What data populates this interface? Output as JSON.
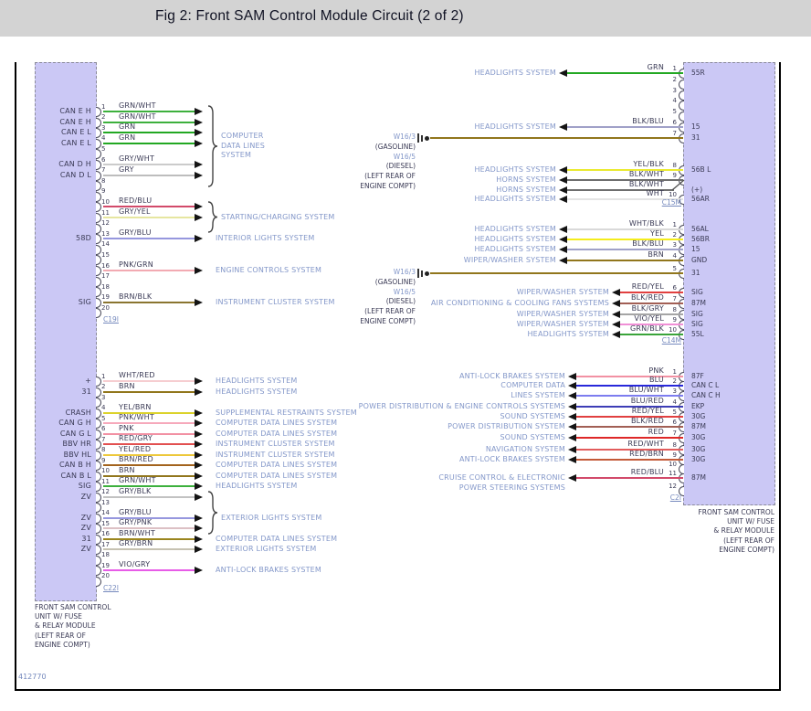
{
  "title": "Fig 2: Front SAM Control Module Circuit (2 of 2)",
  "figure_number": "412770",
  "module_caption_lines": [
    "FRONT SAM CONTROL",
    "UNIT W/ FUSE",
    "& RELAY MODULE",
    "(LEFT REAR OF",
    "ENGINE COMPT)"
  ],
  "ground_label_lines": [
    {
      "text": "W16/3",
      "accent": true
    },
    {
      "text": "(GASOLINE)",
      "accent": false
    },
    {
      "text": "W16/5",
      "accent": true
    },
    {
      "text": "(DIESEL)",
      "accent": false
    },
    {
      "text": "(LEFT REAR OF",
      "accent": false
    },
    {
      "text": "ENGINE COMPT)",
      "accent": false
    }
  ],
  "colors": {
    "module_fill": "#cbc8f5",
    "system_text": "#8397c9",
    "label_text": "#3a3a55",
    "connector_text": "#7589bd",
    "titlebar_bg": "#d3d3d3",
    "wire_colors": {
      "GRN/WHT": "#3db03d",
      "GRN": "#23a823",
      "GRY/WHT": "#cbcbcb",
      "GRY": "#bdbdbd",
      "RED/BLU": "#d24a6a",
      "GRY/YEL": "#e6e6a0",
      "GRY/BLU": "#9697de",
      "PNK/GRN": "#f2aab2",
      "BRN/BLK": "#8a7530",
      "WHT/RED": "#f6cdd0",
      "BRN": "#91761c",
      "YEL/BRN": "#dbd22b",
      "PNK/WHT": "#f6a9bb",
      "PNK": "#f291a3",
      "RED/GRY": "#e25050",
      "YEL/RED": "#edc83a",
      "BRN/RED": "#a3631d",
      "GRY/BLK": "#c2c2c2",
      "GRY/PNK": "#dcc0c4",
      "BRN/WHT": "#9a851e",
      "GRY/BRN": "#c6c2b2",
      "VIO/GRY": "#e75ce7",
      "BLK/BLU": "#a0a1c8",
      "YEL/BLK": "#eaea30",
      "BLK/WHT": "#6e6e6e",
      "WHT": "#e4e4e4",
      "WHT/BLK": "#d9d9d9",
      "YEL": "#f4ec1c",
      "RED/YEL": "#e14040",
      "BLK/RED": "#a25f55",
      "BLK/GRY": "#a5a5a5",
      "VIO/YEL": "#f08fd6",
      "GRN/BLK": "#3aa43a",
      "BLU": "#2828da",
      "BLU/WHT": "#7d7def",
      "BLU/RED": "#3d3db6",
      "RED": "#de2828",
      "RED/WHT": "#e25c5c",
      "RED/BRN": "#c45a38"
    }
  },
  "left_module": {
    "connectors": [
      {
        "id": "C19I",
        "pins": [
          {
            "pin": "1",
            "label": "CAN E H",
            "wire": "GRN/WHT",
            "group": 0
          },
          {
            "pin": "2",
            "label": "CAN E H",
            "wire": "GRN/WHT",
            "group": 0
          },
          {
            "pin": "3",
            "label": "CAN E L",
            "wire": "GRN",
            "group": 0
          },
          {
            "pin": "4",
            "label": "CAN E L",
            "wire": "GRN",
            "group": 0
          },
          {
            "pin": "5"
          },
          {
            "pin": "6",
            "label": "CAN D H",
            "wire": "GRY/WHT",
            "group": 0
          },
          {
            "pin": "7",
            "label": "CAN D L",
            "wire": "GRY",
            "group": 0
          },
          {
            "pin": "8"
          },
          {
            "pin": "9"
          },
          {
            "pin": "10",
            "wire": "RED/BLU",
            "group": 1
          },
          {
            "pin": "11",
            "wire": "GRY/YEL",
            "group": 1
          },
          {
            "pin": "12"
          },
          {
            "pin": "13",
            "label": "58D",
            "wire": "GRY/BLU",
            "system": "INTERIOR LIGHTS SYSTEM"
          },
          {
            "pin": "14"
          },
          {
            "pin": "15"
          },
          {
            "pin": "16",
            "wire": "PNK/GRN",
            "system": "ENGINE CONTROLS SYSTEM"
          },
          {
            "pin": "17"
          },
          {
            "pin": "18"
          },
          {
            "pin": "19",
            "label": "SIG",
            "wire": "BRN/BLK",
            "system": "INSTRUMENT CLUSTER SYSTEM"
          },
          {
            "pin": "20"
          }
        ],
        "groups": [
          {
            "label_lines": [
              "COMPUTER",
              "DATA LINES",
              "SYSTEM"
            ]
          },
          {
            "label_lines": [
              "STARTING/CHARGING SYSTEM"
            ]
          }
        ]
      },
      {
        "id": "C22I",
        "pins": [
          {
            "pin": "1",
            "label": "+",
            "wire": "WHT/RED",
            "system": "HEADLIGHTS SYSTEM"
          },
          {
            "pin": "2",
            "label": "31",
            "wire": "BRN",
            "system": "HEADLIGHTS SYSTEM"
          },
          {
            "pin": "3"
          },
          {
            "pin": "4",
            "label": "CRASH",
            "wire": "YEL/BRN",
            "system": "SUPPLEMENTAL RESTRAINTS SYSTEM"
          },
          {
            "pin": "5",
            "label": "CAN G H",
            "wire": "PNK/WHT",
            "system": "COMPUTER DATA LINES SYSTEM"
          },
          {
            "pin": "6",
            "label": "CAN G L",
            "wire": "PNK",
            "system": "COMPUTER DATA LINES SYSTEM"
          },
          {
            "pin": "7",
            "label": "BBV HR",
            "wire": "RED/GRY",
            "system": "INSTRUMENT CLUSTER SYSTEM"
          },
          {
            "pin": "8",
            "label": "BBV HL",
            "wire": "YEL/RED",
            "system": "INSTRUMENT CLUSTER SYSTEM"
          },
          {
            "pin": "9",
            "label": "CAN B H",
            "wire": "BRN/RED",
            "system": "COMPUTER DATA LINES SYSTEM"
          },
          {
            "pin": "10",
            "label": "CAN B L",
            "wire": "BRN",
            "system": "COMPUTER DATA LINES SYSTEM"
          },
          {
            "pin": "11",
            "label": "SIG",
            "wire": "GRN/WHT",
            "system": "HEADLIGHTS SYSTEM"
          },
          {
            "pin": "12",
            "label": "ZV",
            "wire": "GRY/BLK",
            "group": 0
          },
          {
            "pin": "13"
          },
          {
            "pin": "14",
            "label": "ZV",
            "wire": "GRY/BLU",
            "group": 0
          },
          {
            "pin": "15",
            "label": "ZV",
            "wire": "GRY/PNK",
            "group": 0
          },
          {
            "pin": "16",
            "label": "31",
            "wire": "BRN/WHT",
            "system": "COMPUTER DATA LINES SYSTEM"
          },
          {
            "pin": "17",
            "label": "ZV",
            "wire": "GRY/BRN",
            "system": "EXTERIOR LIGHTS SYSTEM"
          },
          {
            "pin": "18"
          },
          {
            "pin": "19",
            "wire": "VIO/GRY",
            "system": "ANTI-LOCK BRAKES SYSTEM"
          },
          {
            "pin": "20"
          }
        ],
        "groups": [
          {
            "label_lines": [
              "EXTERIOR LIGHTS SYSTEM"
            ]
          }
        ]
      }
    ]
  },
  "right_module": {
    "connectors": [
      {
        "id": "C15M",
        "pins": [
          {
            "pin": "1",
            "wire": "GRN",
            "system": "HEADLIGHTS SYSTEM",
            "label": "55R"
          },
          {
            "pin": "2"
          },
          {
            "pin": "3"
          },
          {
            "pin": "4"
          },
          {
            "pin": "5"
          },
          {
            "pin": "6",
            "wire": "BLK/BLU",
            "system": "HEADLIGHTS SYSTEM",
            "label": "15"
          },
          {
            "pin": "7",
            "wire": "BRN",
            "ground": 0,
            "label": "31"
          },
          {
            "pin": "8",
            "wire": "YEL/BLK",
            "system": "HEADLIGHTS SYSTEM",
            "label": "56B L"
          },
          {
            "pin": "9",
            "wire": "BLK/WHT",
            "system": "HORNS SYSTEM"
          },
          {
            "pin": "",
            "wire": "BLK/WHT",
            "system": "HORNS SYSTEM",
            "label": "(+)",
            "branch": true
          },
          {
            "pin": "10",
            "wire": "WHT",
            "system": "HEADLIGHTS SYSTEM",
            "label": "56AR"
          }
        ]
      },
      {
        "id": "C14M",
        "pins": [
          {
            "pin": "1",
            "wire": "WHT/BLK",
            "system": "HEADLIGHTS SYSTEM",
            "label": "56AL"
          },
          {
            "pin": "2",
            "wire": "YEL",
            "system": "HEADLIGHTS SYSTEM",
            "label": "56BR"
          },
          {
            "pin": "3",
            "wire": "BLK/BLU",
            "system": "HEADLIGHTS SYSTEM",
            "label": "15"
          },
          {
            "pin": "4",
            "wire": "BRN",
            "system": "WIPER/WASHER SYSTEM",
            "label": "GND"
          },
          {
            "pin": "5",
            "wire": "BRN",
            "ground": 1,
            "label": "31"
          },
          {
            "pin": "6",
            "wire": "RED/YEL",
            "system": "WIPER/WASHER SYSTEM",
            "label": "SIG"
          },
          {
            "pin": "7",
            "wire": "BLK/RED",
            "system": "AIR CONDITIONING & COOLING FANS SYSTEMS",
            "label": "87M"
          },
          {
            "pin": "8",
            "wire": "BLK/GRY",
            "system": "WIPER/WASHER SYSTEM",
            "label": "SIG"
          },
          {
            "pin": "9",
            "wire": "VIO/YEL",
            "system": "WIPER/WASHER SYSTEM",
            "label": "SIG"
          },
          {
            "pin": "10",
            "wire": "GRN/BLK",
            "system": "HEADLIGHTS SYSTEM",
            "label": "55L"
          }
        ]
      },
      {
        "id": "C2I",
        "pins": [
          {
            "pin": "1",
            "wire": "PNK",
            "system": "ANTI-LOCK BRAKES SYSTEM",
            "label": "87F"
          },
          {
            "pin": "2",
            "wire": "BLU",
            "system": "COMPUTER DATA",
            "label": "CAN C L"
          },
          {
            "pin": "3",
            "wire": "BLU/WHT",
            "system": "LINES SYSTEM",
            "label": "CAN C H"
          },
          {
            "pin": "4",
            "wire": "BLU/RED",
            "system": "POWER DISTRIBUTION & ENGINE CONTROLS SYSTEMS",
            "label": "EKP"
          },
          {
            "pin": "5",
            "wire": "RED/YEL",
            "system": "SOUND SYSTEMS",
            "label": "30G"
          },
          {
            "pin": "6",
            "wire": "BLK/RED",
            "system": "POWER DISTRIBUTION SYSTEM",
            "label": "87M"
          },
          {
            "pin": "7",
            "wire": "RED",
            "system": "SOUND SYSTEMS",
            "label": "30G"
          },
          {
            "pin": "8",
            "wire": "RED/WHT",
            "system": "NAVIGATION SYSTEM",
            "label": "30G"
          },
          {
            "pin": "9",
            "wire": "RED/BRN",
            "system": "ANTI-LOCK BRAKES SYSTEM",
            "label": "30G"
          },
          {
            "pin": "10"
          },
          {
            "pin": "11",
            "wire": "RED/BLU",
            "system_lines": [
              "CRUISE CONTROL & ELECTRONIC",
              "POWER STEERING SYSTEMS"
            ],
            "label": "87M"
          },
          {
            "pin": "12"
          }
        ]
      }
    ]
  }
}
